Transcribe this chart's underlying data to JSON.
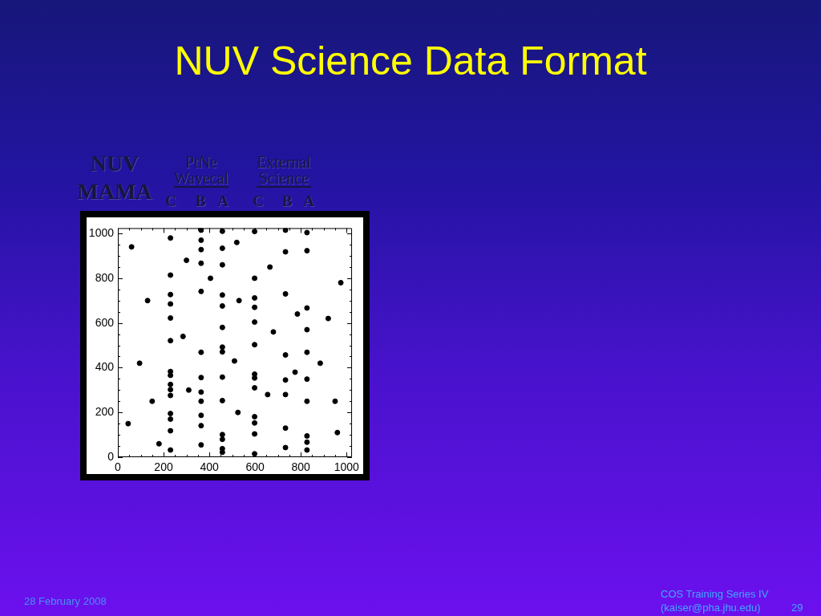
{
  "chart_data": {
    "type": "scatter",
    "title": "NUV Science Data Format",
    "x": [
      230,
      230,
      230,
      230,
      230,
      230,
      230,
      230,
      230,
      230,
      230,
      230,
      230,
      230,
      230,
      364,
      364,
      364,
      364,
      364,
      364,
      364,
      364,
      364,
      364,
      364,
      364,
      457,
      457,
      457,
      457,
      457,
      457,
      457,
      457,
      457,
      457,
      457,
      457,
      457,
      457,
      598,
      598,
      598,
      598,
      598,
      598,
      598,
      598,
      598,
      598,
      598,
      598,
      598,
      733,
      733,
      733,
      733,
      733,
      733,
      733,
      733,
      827,
      827,
      827,
      827,
      827,
      827,
      827,
      827,
      827,
      827,
      60,
      130,
      95,
      150,
      45,
      300,
      285,
      310,
      180,
      405,
      520,
      530,
      510,
      525,
      665,
      680,
      655,
      785,
      775,
      920,
      885,
      950,
      960,
      975
    ],
    "values": [
      980,
      814,
      727,
      685,
      622,
      521,
      383,
      366,
      325,
      302,
      276,
      195,
      170,
      118,
      32,
      1015,
      970,
      928,
      867,
      741,
      469,
      356,
      291,
      250,
      187,
      141,
      55,
      1010,
      934,
      860,
      725,
      676,
      580,
      492,
      471,
      358,
      253,
      101,
      80,
      38,
      22,
      1009,
      800,
      712,
      670,
      604,
      503,
      371,
      354,
      310,
      181,
      153,
      104,
      15,
      1015,
      918,
      730,
      457,
      345,
      280,
      130,
      43,
      1004,
      923,
      667,
      570,
      469,
      349,
      250,
      95,
      67,
      32,
      940,
      700,
      420,
      250,
      150,
      880,
      540,
      300,
      60,
      800,
      960,
      700,
      430,
      200,
      850,
      560,
      280,
      640,
      380,
      620,
      420,
      250,
      110,
      780
    ],
    "color": "#000000",
    "marker": "circle",
    "xlim": [
      0,
      1024
    ],
    "ylim": [
      0,
      1024
    ],
    "xticks": [
      0,
      {
        "value": 50,
        "label": null
      },
      {
        "value": 100,
        "label": null
      },
      {
        "value": 150,
        "label": null
      },
      200,
      {
        "value": 250,
        "label": null
      },
      {
        "value": 300,
        "label": null
      },
      {
        "value": 350,
        "label": null
      },
      400,
      {
        "value": 450,
        "label": null
      },
      {
        "value": 500,
        "label": null
      },
      {
        "value": 550,
        "label": null
      },
      600,
      {
        "value": 650,
        "label": null
      },
      {
        "value": 700,
        "label": null
      },
      {
        "value": 750,
        "label": null
      },
      800,
      {
        "value": 850,
        "label": null
      },
      {
        "value": 900,
        "label": null
      },
      {
        "value": 950,
        "label": null
      },
      1000
    ],
    "yticks": [
      0,
      {
        "value": 50,
        "label": null
      },
      {
        "value": 100,
        "label": null
      },
      {
        "value": 150,
        "label": null
      },
      200,
      {
        "value": 250,
        "label": null
      },
      {
        "value": 300,
        "label": null
      },
      {
        "value": 350,
        "label": null
      },
      400,
      {
        "value": 450,
        "label": null
      },
      {
        "value": 500,
        "label": null
      },
      {
        "value": 550,
        "label": null
      },
      600,
      {
        "value": 650,
        "label": null
      },
      {
        "value": 700,
        "label": null
      },
      {
        "value": 750,
        "label": null
      },
      800,
      {
        "value": 850,
        "label": null
      },
      {
        "value": 900,
        "label": null
      },
      {
        "value": 950,
        "label": null
      },
      1000
    ],
    "annotations": [
      "NUV MAMA",
      "PtNe Wavecal",
      "External Science",
      "C",
      "B",
      "A",
      "C",
      "B",
      "A",
      "28 February 2008",
      "COS Training Series IV",
      "(kaiser@pha.jhu.edu)",
      "29"
    ]
  }
}
